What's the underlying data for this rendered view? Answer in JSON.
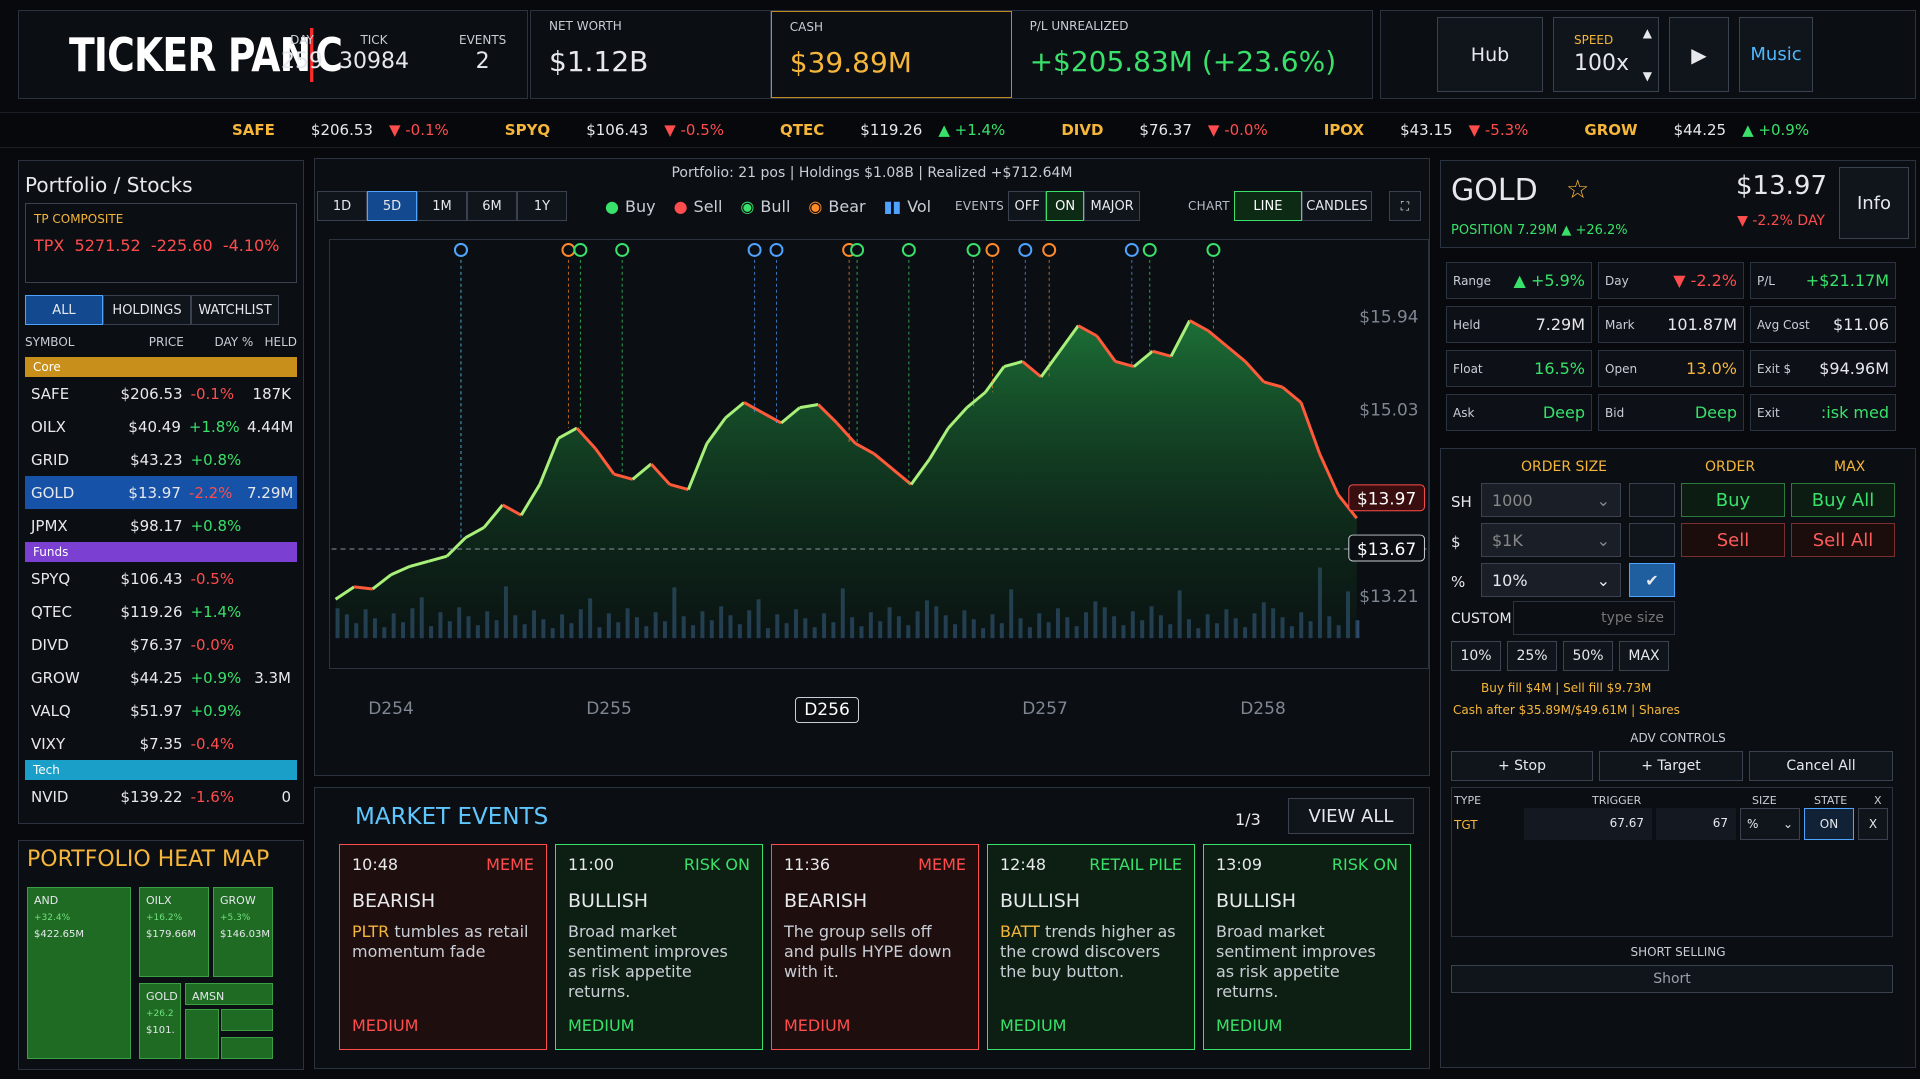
{
  "brand": {
    "name_left": "TICKER PAN",
    "name_right": "C"
  },
  "header": {
    "day_label": "DAY",
    "day": "259",
    "tick_label": "TICK",
    "tick": "30984",
    "events_label": "EVENTS",
    "events": "2",
    "net_worth_label": "NET WORTH",
    "net_worth": "$1.12B",
    "cash_label": "CASH",
    "cash": "$39.89M",
    "pl_label": "P/L UNREALIZED",
    "pl": "+$205.83M (+23.6%)",
    "hub": "Hub",
    "speed_label": "SPEED",
    "speed": "100x",
    "music": "Music"
  },
  "ticker": [
    {
      "sym": "SAFE",
      "price": "$206.53",
      "chg": "▼ -0.1%",
      "dir": "down"
    },
    {
      "sym": "SPYQ",
      "price": "$106.43",
      "chg": "▼ -0.5%",
      "dir": "down"
    },
    {
      "sym": "QTEC",
      "price": "$119.26",
      "chg": "▲ +1.4%",
      "dir": "up"
    },
    {
      "sym": "DIVD",
      "price": "$76.37",
      "chg": "▼ -0.0%",
      "dir": "down"
    },
    {
      "sym": "IPOX",
      "price": "$43.15",
      "chg": "▼ -5.3%",
      "dir": "down"
    },
    {
      "sym": "GROW",
      "price": "$44.25",
      "chg": "▲ +0.9%",
      "dir": "up"
    }
  ],
  "portfolio": {
    "title": "Portfolio / Stocks",
    "composite_label": "TP COMPOSITE",
    "composite": "TPX  5271.52  -225.60  -4.10%",
    "tabs": [
      "ALL",
      "HOLDINGS",
      "WATCHLIST"
    ],
    "cols": [
      "SYMBOL",
      "PRICE",
      "DAY %",
      "HELD"
    ],
    "groups": [
      {
        "name": "Core",
        "color": "#c8901a",
        "rows": [
          [
            "SAFE",
            "$206.53",
            "-0.1%",
            "187K"
          ],
          [
            "OILX",
            "$40.49",
            "+1.8%",
            "4.44M"
          ],
          [
            "GRID",
            "$43.23",
            "+0.8%",
            ""
          ],
          [
            "GOLD",
            "$13.97",
            "-2.2%",
            "7.29M"
          ],
          [
            "JPMX",
            "$98.17",
            "+0.8%",
            ""
          ]
        ]
      },
      {
        "name": "Funds",
        "color": "#7b3fd1",
        "rows": [
          [
            "SPYQ",
            "$106.43",
            "-0.5%",
            ""
          ],
          [
            "QTEC",
            "$119.26",
            "+1.4%",
            ""
          ],
          [
            "DIVD",
            "$76.37",
            "-0.0%",
            ""
          ],
          [
            "GROW",
            "$44.25",
            "+0.9%",
            "3.3M"
          ],
          [
            "VALQ",
            "$51.97",
            "+0.9%",
            ""
          ],
          [
            "VIXY",
            "$7.35",
            "-0.4%",
            ""
          ]
        ]
      },
      {
        "name": "Tech",
        "color": "#1a9fc8",
        "rows": [
          [
            "NVID",
            "$139.22",
            "-1.6%",
            "0"
          ]
        ]
      }
    ]
  },
  "heatmap": {
    "title": "PORTFOLIO HEAT MAP",
    "cells": [
      {
        "sym": "AND",
        "chg": "+32.4%",
        "val": "$422.65M"
      },
      {
        "sym": "OILX",
        "chg": "+16.2%",
        "val": "$179.66M"
      },
      {
        "sym": "GROW",
        "chg": "+5.3%",
        "val": "$146.03M"
      },
      {
        "sym": "GOLD",
        "chg": "+26.2",
        "val": "$101."
      },
      {
        "sym": "AMSN",
        "chg": "",
        "val": ""
      }
    ]
  },
  "chart": {
    "summary": "Portfolio: 21 pos | Holdings $1.08B | Realized +$712.64M",
    "ranges": [
      "1D",
      "5D",
      "1M",
      "6M",
      "1Y"
    ],
    "legend": [
      "Buy",
      "Sell",
      "Bull",
      "Bear",
      "Vol"
    ],
    "events_label": "EVENTS",
    "events_opts": [
      "OFF",
      "ON",
      "MAJOR"
    ],
    "chart_label": "CHART",
    "chart_opts": [
      "LINE",
      "CANDLES"
    ],
    "last_price": "$13.97",
    "ref_price": "$13.67"
  },
  "chart_data": {
    "type": "line",
    "title": "",
    "x_labels": [
      "D254",
      "D255",
      "D256",
      "D257",
      "D258"
    ],
    "y_ticks": [
      "$15.94",
      "$15.03",
      "$13.21"
    ],
    "ylim": [
      12.8,
      16.2
    ],
    "values": [
      13.18,
      13.3,
      13.28,
      13.42,
      13.5,
      13.55,
      13.6,
      13.78,
      13.88,
      14.1,
      14.0,
      14.3,
      14.75,
      14.85,
      14.65,
      14.4,
      14.35,
      14.5,
      14.3,
      14.25,
      14.7,
      14.95,
      15.1,
      15.0,
      14.9,
      15.05,
      15.08,
      14.9,
      14.7,
      14.6,
      14.45,
      14.3,
      14.55,
      14.85,
      15.05,
      15.2,
      15.45,
      15.5,
      15.35,
      15.6,
      15.85,
      15.75,
      15.5,
      15.45,
      15.6,
      15.55,
      15.9,
      15.8,
      15.65,
      15.5,
      15.3,
      15.25,
      15.1,
      14.6,
      14.2,
      13.97
    ]
  },
  "events": {
    "title": "MARKET EVENTS",
    "page": "1/3",
    "view_all": "VIEW ALL",
    "cards": [
      {
        "time": "10:48",
        "tag": "MEME",
        "head": "BEARISH",
        "hl": "PLTR",
        "desc": " tumbles as retail momentum fade",
        "sev": "MEDIUM",
        "kind": "bear"
      },
      {
        "time": "11:00",
        "tag": "RISK ON",
        "head": "BULLISH",
        "hl": "",
        "desc": "Broad market sentiment improves as risk appetite returns.",
        "sev": "MEDIUM",
        "kind": "bull"
      },
      {
        "time": "11:36",
        "tag": "MEME",
        "head": "BEARISH",
        "hl": "",
        "desc": "The group sells off and pulls HYPE down with it.",
        "sev": "MEDIUM",
        "kind": "bear"
      },
      {
        "time": "12:48",
        "tag": "RETAIL PILE",
        "head": "BULLISH",
        "hl": "BATT",
        "desc": " trends higher as the crowd discovers the buy button.",
        "sev": "MEDIUM",
        "kind": "bull"
      },
      {
        "time": "13:09",
        "tag": "RISK ON",
        "head": "BULLISH",
        "hl": "",
        "desc": "Broad market sentiment improves as risk appetite returns.",
        "sev": "MEDIUM",
        "kind": "bull"
      }
    ]
  },
  "stock": {
    "sym": "GOLD",
    "price": "$13.97",
    "position": "POSITION 7.29M ▲ +26.2%",
    "day": "▼ -2.2% DAY",
    "info": "Info",
    "metrics": [
      [
        "Range",
        "▲ +5.9%"
      ],
      [
        "Day",
        "▼ -2.2%"
      ],
      [
        "P/L",
        "+$21.17M"
      ],
      [
        "Held",
        "7.29M"
      ],
      [
        "Mark",
        "101.87M"
      ],
      [
        "Avg Cost",
        "$11.06"
      ],
      [
        "Float",
        "16.5%"
      ],
      [
        "Open",
        "13.0%"
      ],
      [
        "Exit $",
        "$94.96M"
      ],
      [
        "Ask",
        "Deep"
      ],
      [
        "Bid",
        "Deep"
      ],
      [
        "Exit",
        ":isk med"
      ]
    ]
  },
  "order": {
    "size_label": "ORDER SIZE",
    "order_label": "ORDER",
    "max_label": "MAX",
    "sh": "SH",
    "sh_val": "1000",
    "usd": "$",
    "usd_val": "$1K",
    "pct": "%",
    "pct_val": "10%",
    "buy": "Buy",
    "buy_all": "Buy All",
    "sell": "Sell",
    "sell_all": "Sell All",
    "custom": "CUSTOM",
    "custom_ph": "type size",
    "quick": [
      "10%",
      "25%",
      "50%",
      "MAX"
    ],
    "fill": "Buy fill $4M | Sell fill $9.73M",
    "cash_after": "Cash after $35.89M/$49.61M | Shares",
    "adv": "ADV CONTROLS",
    "stop": "+ Stop",
    "target": "+ Target",
    "cancel": "Cancel All",
    "cols": [
      "TYPE",
      "TRIGGER",
      "SIZE",
      "STATE",
      "X"
    ],
    "row": {
      "type": "TGT",
      "trigger": "67.67",
      "size": "67",
      "unit": "%",
      "state": "ON",
      "x": "X"
    },
    "short_label": "SHORT SELLING",
    "short": "Short"
  }
}
